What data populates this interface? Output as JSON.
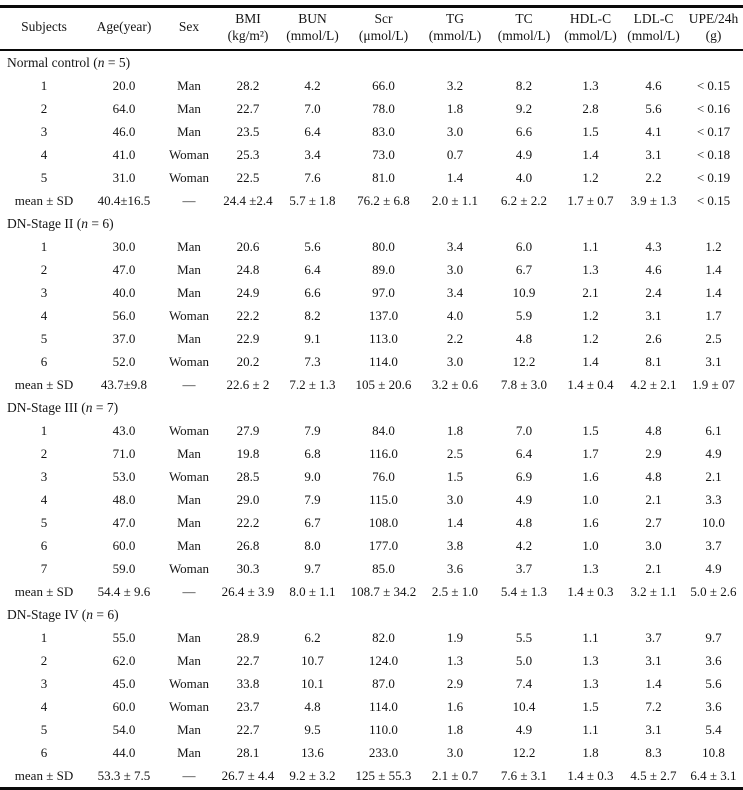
{
  "table": {
    "columns": [
      {
        "line1": "Subjects",
        "line2": ""
      },
      {
        "line1": "Age(year)",
        "line2": ""
      },
      {
        "line1": "Sex",
        "line2": ""
      },
      {
        "line1": "BMI",
        "line2": "(kg/m²)"
      },
      {
        "line1": "BUN",
        "line2": "(mmol/L)"
      },
      {
        "line1": "Scr",
        "line2": "(μmol/L)"
      },
      {
        "line1": "TG",
        "line2": "(mmol/L)"
      },
      {
        "line1": "TC",
        "line2": "(mmol/L)"
      },
      {
        "line1": "HDL-C",
        "line2": "(mmol/L)"
      },
      {
        "line1": "LDL-C",
        "line2": "(mmol/L)"
      },
      {
        "line1": "UPE/24h",
        "line2": "(g)"
      }
    ],
    "groups": [
      {
        "name": "Normal control",
        "n": "5",
        "rows": [
          [
            "1",
            "20.0",
            "Man",
            "28.2",
            "4.2",
            "66.0",
            "3.2",
            "8.2",
            "1.3",
            "4.6",
            "< 0.15"
          ],
          [
            "2",
            "64.0",
            "Man",
            "22.7",
            "7.0",
            "78.0",
            "1.8",
            "9.2",
            "2.8",
            "5.6",
            "< 0.16"
          ],
          [
            "3",
            "46.0",
            "Man",
            "23.5",
            "6.4",
            "83.0",
            "3.0",
            "6.6",
            "1.5",
            "4.1",
            "< 0.17"
          ],
          [
            "4",
            "41.0",
            "Woman",
            "25.3",
            "3.4",
            "73.0",
            "0.7",
            "4.9",
            "1.4",
            "3.1",
            "< 0.18"
          ],
          [
            "5",
            "31.0",
            "Woman",
            "22.5",
            "7.6",
            "81.0",
            "1.4",
            "4.0",
            "1.2",
            "2.2",
            "< 0.19"
          ]
        ],
        "mean": [
          "mean ± SD",
          "40.4±16.5",
          "—",
          "24.4 ±2.4",
          "5.7 ± 1.8",
          "76.2 ± 6.8",
          "2.0 ± 1.1",
          "6.2 ± 2.2",
          "1.7 ± 0.7",
          "3.9 ± 1.3",
          "< 0.15"
        ]
      },
      {
        "name": "DN-Stage II",
        "n": "6",
        "rows": [
          [
            "1",
            "30.0",
            "Man",
            "20.6",
            "5.6",
            "80.0",
            "3.4",
            "6.0",
            "1.1",
            "4.3",
            "1.2"
          ],
          [
            "2",
            "47.0",
            "Man",
            "24.8",
            "6.4",
            "89.0",
            "3.0",
            "6.7",
            "1.3",
            "4.6",
            "1.4"
          ],
          [
            "3",
            "40.0",
            "Man",
            "24.9",
            "6.6",
            "97.0",
            "3.4",
            "10.9",
            "2.1",
            "2.4",
            "1.4"
          ],
          [
            "4",
            "56.0",
            "Woman",
            "22.2",
            "8.2",
            "137.0",
            "4.0",
            "5.9",
            "1.2",
            "3.1",
            "1.7"
          ],
          [
            "5",
            "37.0",
            "Man",
            "22.9",
            "9.1",
            "113.0",
            "2.2",
            "4.8",
            "1.2",
            "2.6",
            "2.5"
          ],
          [
            "6",
            "52.0",
            "Woman",
            "20.2",
            "7.3",
            "114.0",
            "3.0",
            "12.2",
            "1.4",
            "8.1",
            "3.1"
          ]
        ],
        "mean": [
          "mean ± SD",
          "43.7±9.8",
          "—",
          "22.6 ± 2",
          "7.2 ± 1.3",
          "105 ± 20.6",
          "3.2 ± 0.6",
          "7.8 ± 3.0",
          "1.4 ± 0.4",
          "4.2 ± 2.1",
          "1.9 ± 07"
        ]
      },
      {
        "name": "DN-Stage III",
        "n": "7",
        "rows": [
          [
            "1",
            "43.0",
            "Woman",
            "27.9",
            "7.9",
            "84.0",
            "1.8",
            "7.0",
            "1.5",
            "4.8",
            "6.1"
          ],
          [
            "2",
            "71.0",
            "Man",
            "19.8",
            "6.8",
            "116.0",
            "2.5",
            "6.4",
            "1.7",
            "2.9",
            "4.9"
          ],
          [
            "3",
            "53.0",
            "Woman",
            "28.5",
            "9.0",
            "76.0",
            "1.5",
            "6.9",
            "1.6",
            "4.8",
            "2.1"
          ],
          [
            "4",
            "48.0",
            "Man",
            "29.0",
            "7.9",
            "115.0",
            "3.0",
            "4.9",
            "1.0",
            "2.1",
            "3.3"
          ],
          [
            "5",
            "47.0",
            "Man",
            "22.2",
            "6.7",
            "108.0",
            "1.4",
            "4.8",
            "1.6",
            "2.7",
            "10.0"
          ],
          [
            "6",
            "60.0",
            "Man",
            "26.8",
            "8.0",
            "177.0",
            "3.8",
            "4.2",
            "1.0",
            "3.0",
            "3.7"
          ],
          [
            "7",
            "59.0",
            "Woman",
            "30.3",
            "9.7",
            "85.0",
            "3.6",
            "3.7",
            "1.3",
            "2.1",
            "4.9"
          ]
        ],
        "mean": [
          "mean ± SD",
          "54.4 ± 9.6",
          "—",
          "26.4 ± 3.9",
          "8.0 ± 1.1",
          "108.7 ± 34.2",
          "2.5 ± 1.0",
          "5.4 ± 1.3",
          "1.4 ± 0.3",
          "3.2 ± 1.1",
          "5.0 ± 2.6"
        ]
      },
      {
        "name": "DN-Stage IV",
        "n": "6",
        "rows": [
          [
            "1",
            "55.0",
            "Man",
            "28.9",
            "6.2",
            "82.0",
            "1.9",
            "5.5",
            "1.1",
            "3.7",
            "9.7"
          ],
          [
            "2",
            "62.0",
            "Man",
            "22.7",
            "10.7",
            "124.0",
            "1.3",
            "5.0",
            "1.3",
            "3.1",
            "3.6"
          ],
          [
            "3",
            "45.0",
            "Woman",
            "33.8",
            "10.1",
            "87.0",
            "2.9",
            "7.4",
            "1.3",
            "1.4",
            "5.6"
          ],
          [
            "4",
            "60.0",
            "Woman",
            "23.7",
            "4.8",
            "114.0",
            "1.6",
            "10.4",
            "1.5",
            "7.2",
            "3.6"
          ],
          [
            "5",
            "54.0",
            "Man",
            "22.7",
            "9.5",
            "110.0",
            "1.8",
            "4.9",
            "1.1",
            "3.1",
            "5.4"
          ],
          [
            "6",
            "44.0",
            "Man",
            "28.1",
            "13.6",
            "233.0",
            "3.0",
            "12.2",
            "1.8",
            "8.3",
            "10.8"
          ]
        ],
        "mean": [
          "mean ± SD",
          "53.3 ± 7.5",
          "—",
          "26.7 ± 4.4",
          "9.2 ± 3.2",
          "125 ± 55.3",
          "2.1 ± 0.7",
          "7.6 ± 3.1",
          "1.4 ± 0.3",
          "4.5 ± 2.7",
          "6.4 ± 3.1"
        ]
      }
    ]
  }
}
